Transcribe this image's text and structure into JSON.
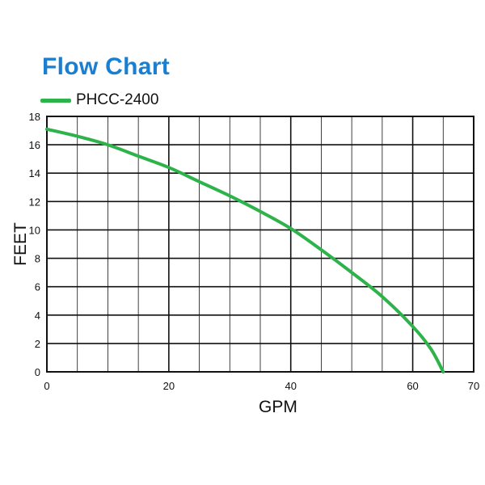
{
  "chart_data": {
    "type": "line",
    "title": "Flow Chart",
    "xlabel": "GPM",
    "ylabel": "FEET",
    "xlim": [
      0,
      70
    ],
    "ylim": [
      0,
      18
    ],
    "x_ticks": [
      0,
      20,
      40,
      60,
      70
    ],
    "y_ticks": [
      0,
      2,
      4,
      6,
      8,
      10,
      12,
      14,
      16,
      18
    ],
    "x_minor_step": 5,
    "y_minor_step": 2,
    "grid": true,
    "legend_position": "top-left",
    "series": [
      {
        "name": "PHCC-2400",
        "color": "#2db34a",
        "x": [
          0,
          5,
          10,
          15,
          20,
          25,
          30,
          35,
          40,
          45,
          50,
          55,
          60,
          63,
          65
        ],
        "y": [
          17.1,
          16.6,
          16.0,
          15.2,
          14.4,
          13.4,
          12.4,
          11.3,
          10.1,
          8.6,
          7.0,
          5.3,
          3.2,
          1.6,
          0
        ]
      }
    ]
  },
  "colors": {
    "title": "#1a7fd0",
    "grid_major": "#111111",
    "grid_minor": "#111111",
    "background": "#ffffff"
  }
}
